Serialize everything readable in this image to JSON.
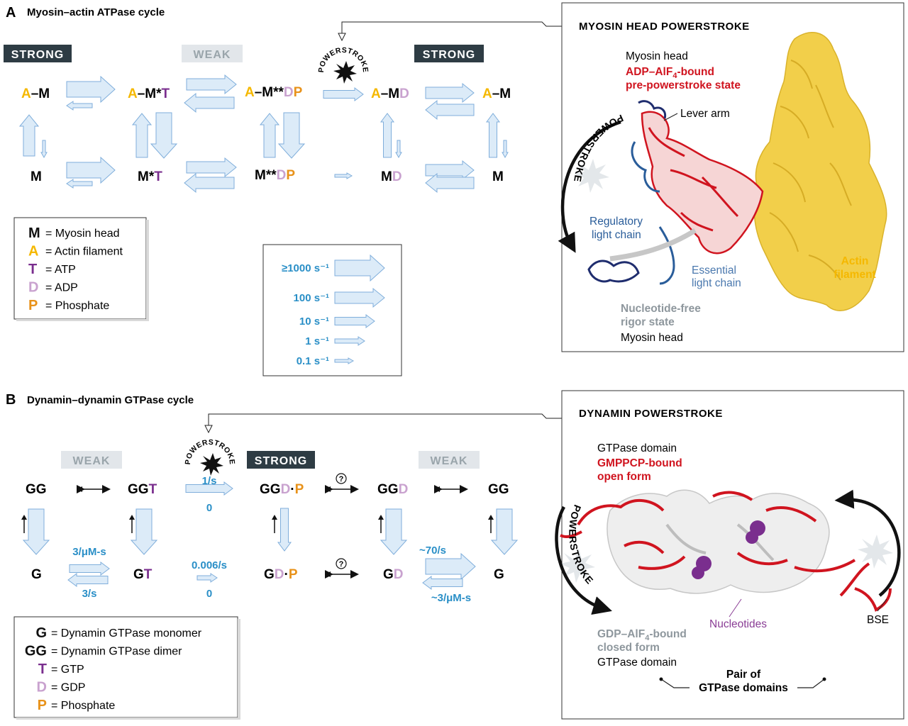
{
  "colors": {
    "actin": "#f5b800",
    "atp": "#7a2e8e",
    "adp": "#c9a2cf",
    "phosphate": "#e8921a",
    "rate": "#2a8fc7",
    "arrow_fill": "#dcebf8",
    "arrow_stroke": "#7faedb",
    "strong_bg": "#2e3c44",
    "weak_bg": "#e2e6ea",
    "red": "#d0141f",
    "actin_surface": "#f2cf4a",
    "regulatory": "#2a5d9a",
    "gray_text": "#8e979d"
  },
  "panelA": {
    "letter": "A",
    "title": "Myosin–actin ATPase cycle",
    "states": {
      "strong1": "STRONG",
      "weak": "WEAK",
      "strong2": "STRONG"
    },
    "powerstroke_badge": "POWERSTROKE",
    "species": {
      "am": [
        "A",
        "–M"
      ],
      "amt": [
        "A",
        "–M*",
        "T"
      ],
      "amdp": [
        "A",
        "–M**",
        "D",
        "P"
      ],
      "amd": [
        "A",
        "–M",
        "D"
      ],
      "am2": [
        "A",
        "–M"
      ],
      "m": "M",
      "mt": [
        "M*",
        "T"
      ],
      "mdp": [
        "M**",
        "D",
        "P"
      ],
      "md": [
        "M",
        "D"
      ],
      "m2": "M"
    },
    "legend": [
      {
        "key": "M",
        "text": "= Myosin head"
      },
      {
        "key": "A",
        "text": "= Actin filament"
      },
      {
        "key": "T",
        "text": "= ATP"
      },
      {
        "key": "D",
        "text": "= ADP"
      },
      {
        "key": "P",
        "text": "= Phosphate"
      }
    ],
    "rate_legend": [
      {
        "label": "≥1000 s⁻¹"
      },
      {
        "label": "100 s⁻¹"
      },
      {
        "label": "10 s⁻¹"
      },
      {
        "label": "1 s⁻¹"
      },
      {
        "label": "0.1 s⁻¹"
      }
    ],
    "structure": {
      "title": "MYOSIN HEAD POWERSTROKE",
      "myosin_head_top": "Myosin head",
      "pre_state_line1_a": "ADP–AlF",
      "pre_state_line1_sub": "4",
      "pre_state_line1_b": "-bound",
      "pre_state_line2": "pre-powerstroke state",
      "lever_arm": "Lever arm",
      "powerstroke": "POWERSTROKE",
      "regulatory_1": "Regulatory",
      "regulatory_2": "light chain",
      "essential_1": "Essential",
      "essential_2": "light chain",
      "actin_1": "Actin",
      "actin_2": "filament",
      "rigor_1": "Nucleotide-free",
      "rigor_2": "rigor state",
      "myosin_head_bottom": "Myosin head"
    }
  },
  "panelB": {
    "letter": "B",
    "title": "Dynamin–dynamin GTPase cycle",
    "states": {
      "weak1": "WEAK",
      "strong": "STRONG",
      "weak2": "WEAK"
    },
    "powerstroke_badge": "POWERSTROKE",
    "species": {
      "gg": "GG",
      "ggt": [
        "GG",
        "T"
      ],
      "ggdp": [
        "GG",
        "D",
        "·",
        "P"
      ],
      "ggd": [
        "GG",
        "D"
      ],
      "gg2": "GG",
      "g": "G",
      "gt": [
        "G",
        "T"
      ],
      "gdp": [
        "G",
        "D",
        "·",
        "P"
      ],
      "gd": [
        "G",
        "D"
      ],
      "g2": "G"
    },
    "rates": {
      "ggt_fwd": "1/s",
      "ggt_rev": "0",
      "gt_fwd": "0.006/s",
      "gt_rev": "0",
      "g_on": "3/μM-s",
      "g_off": "3/s",
      "gd_off": "~70/s",
      "gd_on": "~3/μM-s"
    },
    "question": "?",
    "legend": [
      {
        "key": "G",
        "text": "= Dynamin GTPase monomer"
      },
      {
        "key": "GG",
        "text": "= Dynamin GTPase dimer"
      },
      {
        "key": "T",
        "text": "= GTP"
      },
      {
        "key": "D",
        "text": "= GDP"
      },
      {
        "key": "P",
        "text": "= Phosphate"
      }
    ],
    "structure": {
      "title": "DYNAMIN POWERSTROKE",
      "gtpase_top": "GTPase domain",
      "open_1": "GMPPCP-bound",
      "open_2": "open form",
      "powerstroke": "POWERSTROKE",
      "closed_1a": "GDP–AlF",
      "closed_1sub": "4",
      "closed_1b": "-bound",
      "closed_2": "closed form",
      "gtpase_bottom": "GTPase domain",
      "nucleotides": "Nucleotides",
      "bse": "BSE",
      "pair_1": "Pair of",
      "pair_2": "GTPase domains"
    }
  }
}
